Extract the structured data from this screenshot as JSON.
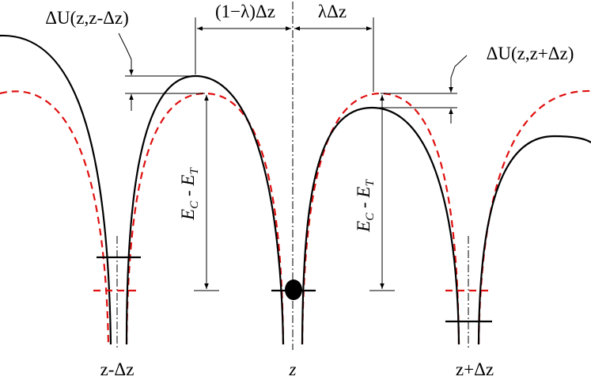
{
  "labels": {
    "delta_u_left": "ΔU(z,z-Δz)",
    "delta_u_right": "ΔU(z,z+Δz)",
    "span_left": "(1−λ)Δz",
    "span_right": "λΔz",
    "energy_left": [
      "E",
      "C",
      " - E",
      "T"
    ],
    "energy_right": [
      "E",
      "C",
      " - E",
      "T"
    ],
    "x_left": "z-Δz",
    "x_center": "z",
    "x_right": "z+Δz"
  }
}
